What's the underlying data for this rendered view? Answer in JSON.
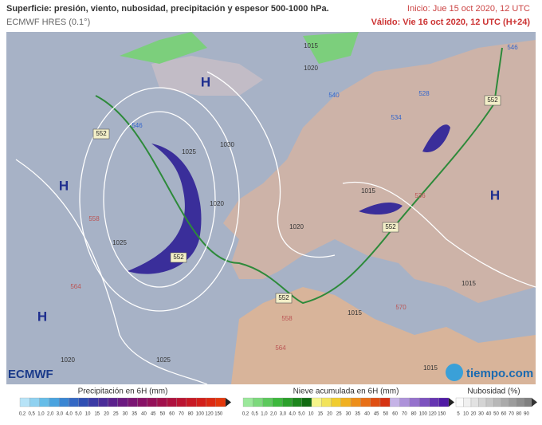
{
  "header": {
    "title": "Superficie: presión, viento, nubosidad, precipitación y espesor 500-1000 hPa.",
    "subtitle": "ECMWF HRES (0.1°)",
    "init": "Inicio: Jue 15 oct 2020, 12 UTC",
    "valid": "Válido: Vie 16 oct 2020, 12 UTC (H+24)"
  },
  "map": {
    "highs": [
      "H",
      "H",
      "H",
      "H"
    ],
    "isobars": [
      "1015",
      "1020",
      "1030",
      "1025",
      "1020",
      "1025",
      "1020",
      "1015",
      "1015",
      "1015",
      "1020",
      "1025",
      "1015"
    ],
    "thickness_boxes": [
      "552",
      "552",
      "552",
      "552",
      "552"
    ],
    "thickness": [
      "558",
      "564",
      "558",
      "564",
      "570",
      "546",
      "534",
      "528",
      "540",
      "546",
      "536"
    ]
  },
  "logos": {
    "left": "ECMWF",
    "right": "tiempo.com"
  },
  "legend": {
    "precipitation": {
      "title": "Precipitación en 6H (mm)",
      "ticks": [
        "0,2",
        "0,5",
        "1,0",
        "2,0",
        "3,0",
        "4,0",
        "5,0",
        "10",
        "15",
        "20",
        "25",
        "30",
        "35",
        "40",
        "45",
        "50",
        "60",
        "70",
        "80",
        "100",
        "120",
        "150"
      ]
    },
    "snow": {
      "title": "Nieve acumulada en 6H (mm)",
      "ticks": [
        "0,2",
        "0,5",
        "1,0",
        "2,0",
        "3,0",
        "4,0",
        "5,0",
        "10",
        "15",
        "20",
        "25",
        "30",
        "35",
        "40",
        "45",
        "50",
        "60",
        "70",
        "80",
        "100",
        "120",
        "150"
      ]
    },
    "clouds": {
      "title": "Nubosidad (%)",
      "ticks": [
        "5",
        "10",
        "20",
        "30",
        "40",
        "50",
        "60",
        "70",
        "80",
        "90"
      ]
    }
  }
}
